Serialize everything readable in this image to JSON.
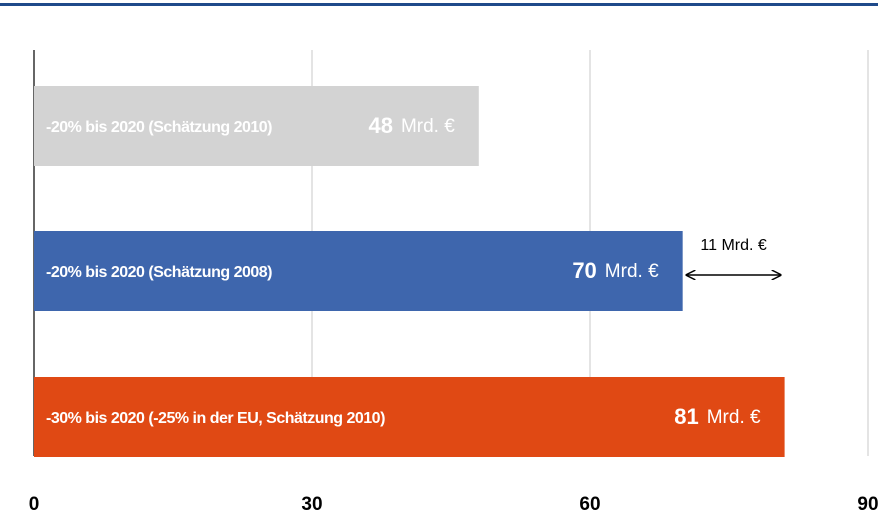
{
  "chart_data": {
    "type": "barh",
    "categories": [
      "-20% bis 2020 (Schätzung 2010)",
      "-20% bis 2020 (Schätzung 2008)",
      "-30% bis 2020 (-25% in der EU, Schätzung 2010)"
    ],
    "values": [
      48,
      70,
      81
    ],
    "unit": "Mrd. €",
    "colors": [
      "#d3d3d3",
      "#3e66ad",
      "#e04914"
    ],
    "label_colors": [
      "#ffffff",
      "#ffffff",
      "#ffffff"
    ],
    "annotation": "11 Mrd. €",
    "xlim": [
      0,
      90
    ],
    "xticks": [
      0,
      30,
      60,
      90
    ],
    "grid": true
  }
}
